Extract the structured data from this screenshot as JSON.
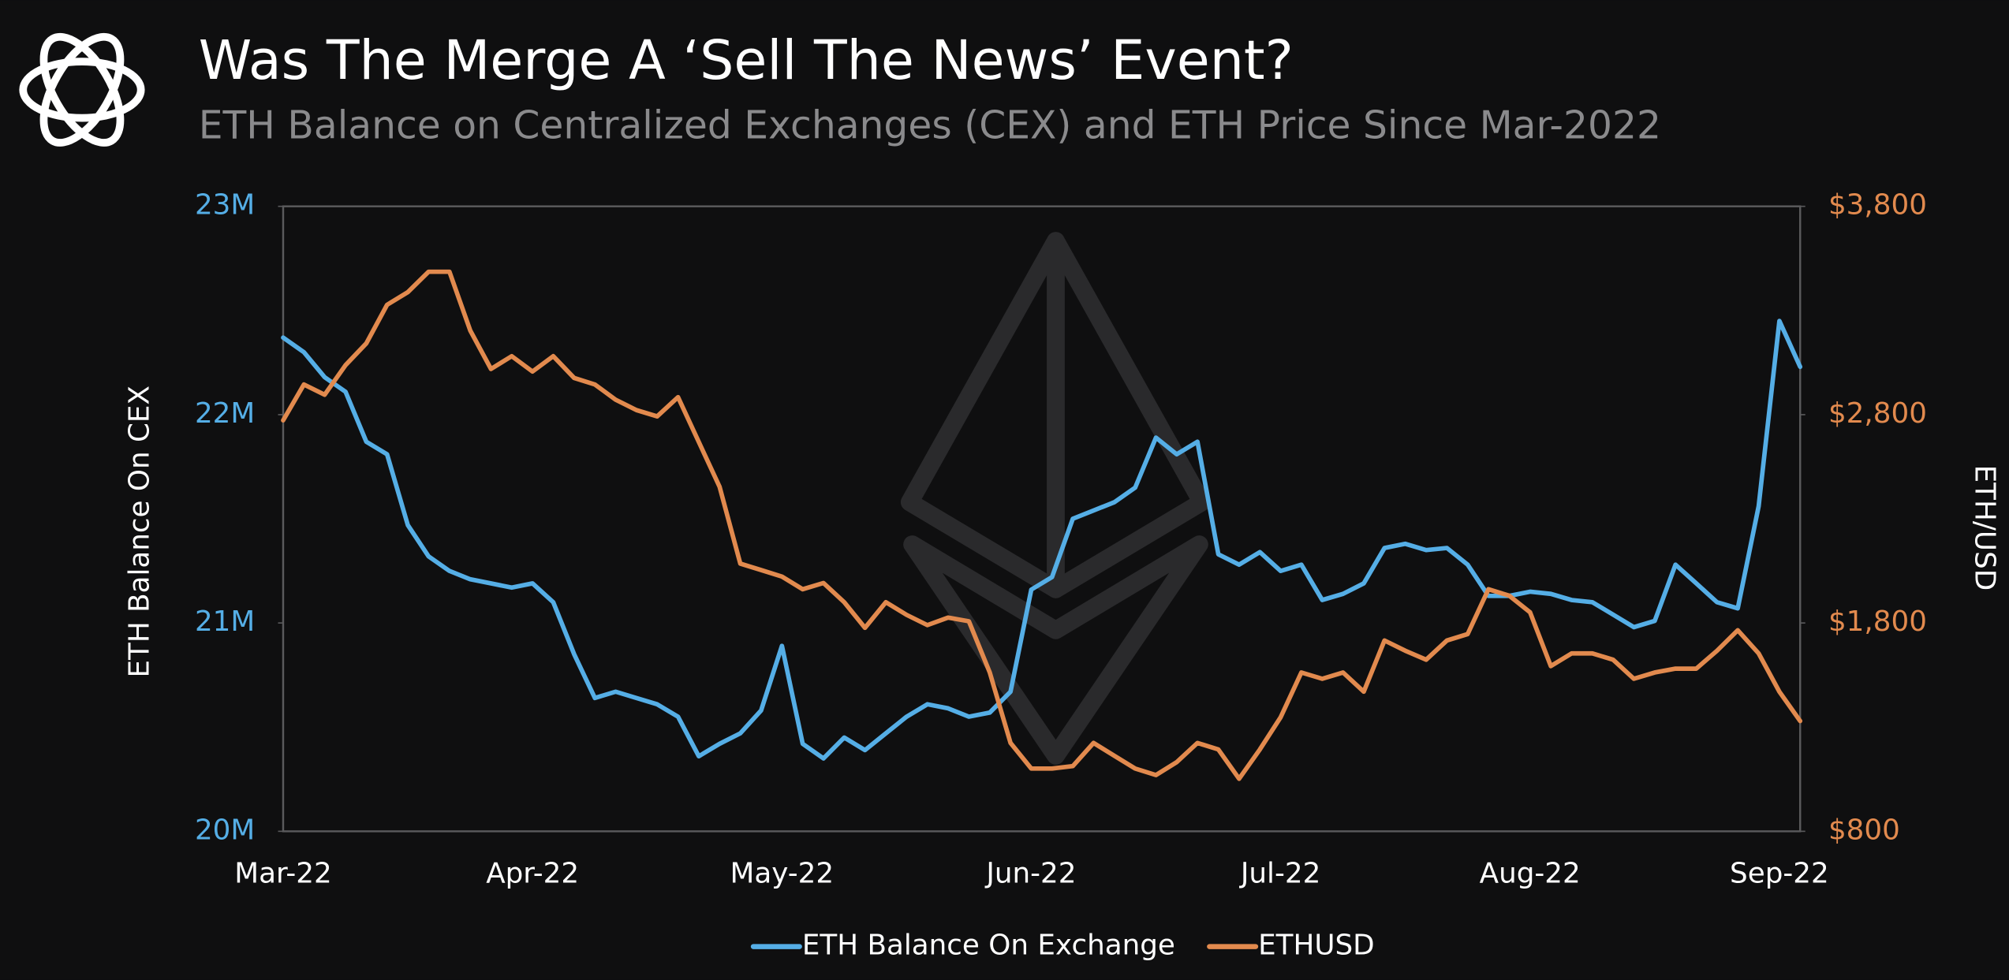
{
  "chart_data": {
    "type": "line",
    "title": "Was The Merge A ‘Sell The News’ Event?",
    "subtitle": "ETH Balance on Centralized Exchanges (CEX) and ETH Price Since Mar-2022",
    "y_label": "ETH Balance On CEX",
    "y2_label": "ETH/USD",
    "categories": [
      "Mar-22",
      null,
      null,
      null,
      null,
      null,
      null,
      null,
      null,
      null,
      null,
      null,
      "Apr-22",
      null,
      null,
      null,
      null,
      null,
      null,
      null,
      null,
      null,
      null,
      null,
      "May-22",
      null,
      null,
      null,
      null,
      null,
      null,
      null,
      null,
      null,
      null,
      null,
      "Jun-22",
      null,
      null,
      null,
      null,
      null,
      null,
      null,
      null,
      null,
      null,
      null,
      "Jul-22",
      null,
      null,
      null,
      null,
      null,
      null,
      null,
      null,
      null,
      null,
      null,
      "Aug-22",
      null,
      null,
      null,
      null,
      null,
      null,
      null,
      null,
      null,
      null,
      null,
      "Sep-22",
      null
    ],
    "ylim": [
      20000000,
      23000000
    ],
    "yticks": [
      {
        "value": 20000000,
        "label": "20M"
      },
      {
        "value": 21000000,
        "label": "21M"
      },
      {
        "value": 22000000,
        "label": "22M"
      },
      {
        "value": 23000000,
        "label": "23M"
      }
    ],
    "y2lim": [
      800,
      3800
    ],
    "y2ticks": [
      {
        "value": 800,
        "label": "$800"
      },
      {
        "value": 1800,
        "label": "$1,800"
      },
      {
        "value": 2800,
        "label": "$2,800"
      },
      {
        "value": 3800,
        "label": "$3,800"
      }
    ],
    "legend": "bottom",
    "series": [
      {
        "name": "ETH Balance On Exchange",
        "color": "#55aee6",
        "axis": "y",
        "values": [
          22370000,
          22300000,
          22180000,
          22110000,
          21870000,
          21810000,
          21470000,
          21320000,
          21250000,
          21210000,
          21190000,
          21170000,
          21190000,
          21100000,
          20850000,
          20640000,
          20670000,
          20640000,
          20610000,
          20550000,
          20360000,
          20420000,
          20470000,
          20580000,
          20890000,
          20420000,
          20350000,
          20450000,
          20390000,
          20470000,
          20550000,
          20610000,
          20590000,
          20550000,
          20570000,
          20670000,
          21160000,
          21220000,
          21500000,
          21540000,
          21580000,
          21650000,
          21890000,
          21810000,
          21870000,
          21330000,
          21280000,
          21340000,
          21250000,
          21280000,
          21110000,
          21140000,
          21190000,
          21360000,
          21380000,
          21350000,
          21360000,
          21280000,
          21130000,
          21130000,
          21150000,
          21140000,
          21110000,
          21100000,
          21040000,
          20980000,
          21010000,
          21280000,
          21190000,
          21100000,
          21070000,
          21560000,
          22450000,
          22230000
        ]
      },
      {
        "name": "ETHUSD",
        "color": "#e28a4e",
        "axis": "y2",
        "values": [
          2773,
          2945,
          2896,
          3038,
          3142,
          3327,
          3388,
          3486,
          3486,
          3204,
          3019,
          3081,
          3007,
          3081,
          2976,
          2945,
          2872,
          2822,
          2792,
          2884,
          2669,
          2454,
          2085,
          2054,
          2023,
          1962,
          1992,
          1900,
          1777,
          1900,
          1839,
          1790,
          1826,
          1808,
          1562,
          1224,
          1101,
          1101,
          1113,
          1224,
          1162,
          1101,
          1070,
          1132,
          1224,
          1193,
          1052,
          1193,
          1347,
          1562,
          1532,
          1562,
          1470,
          1716,
          1667,
          1624,
          1716,
          1747,
          1962,
          1931,
          1851,
          1593,
          1654,
          1654,
          1624,
          1532,
          1562,
          1581,
          1581,
          1667,
          1765,
          1654,
          1470,
          1329
        ]
      }
    ]
  }
}
